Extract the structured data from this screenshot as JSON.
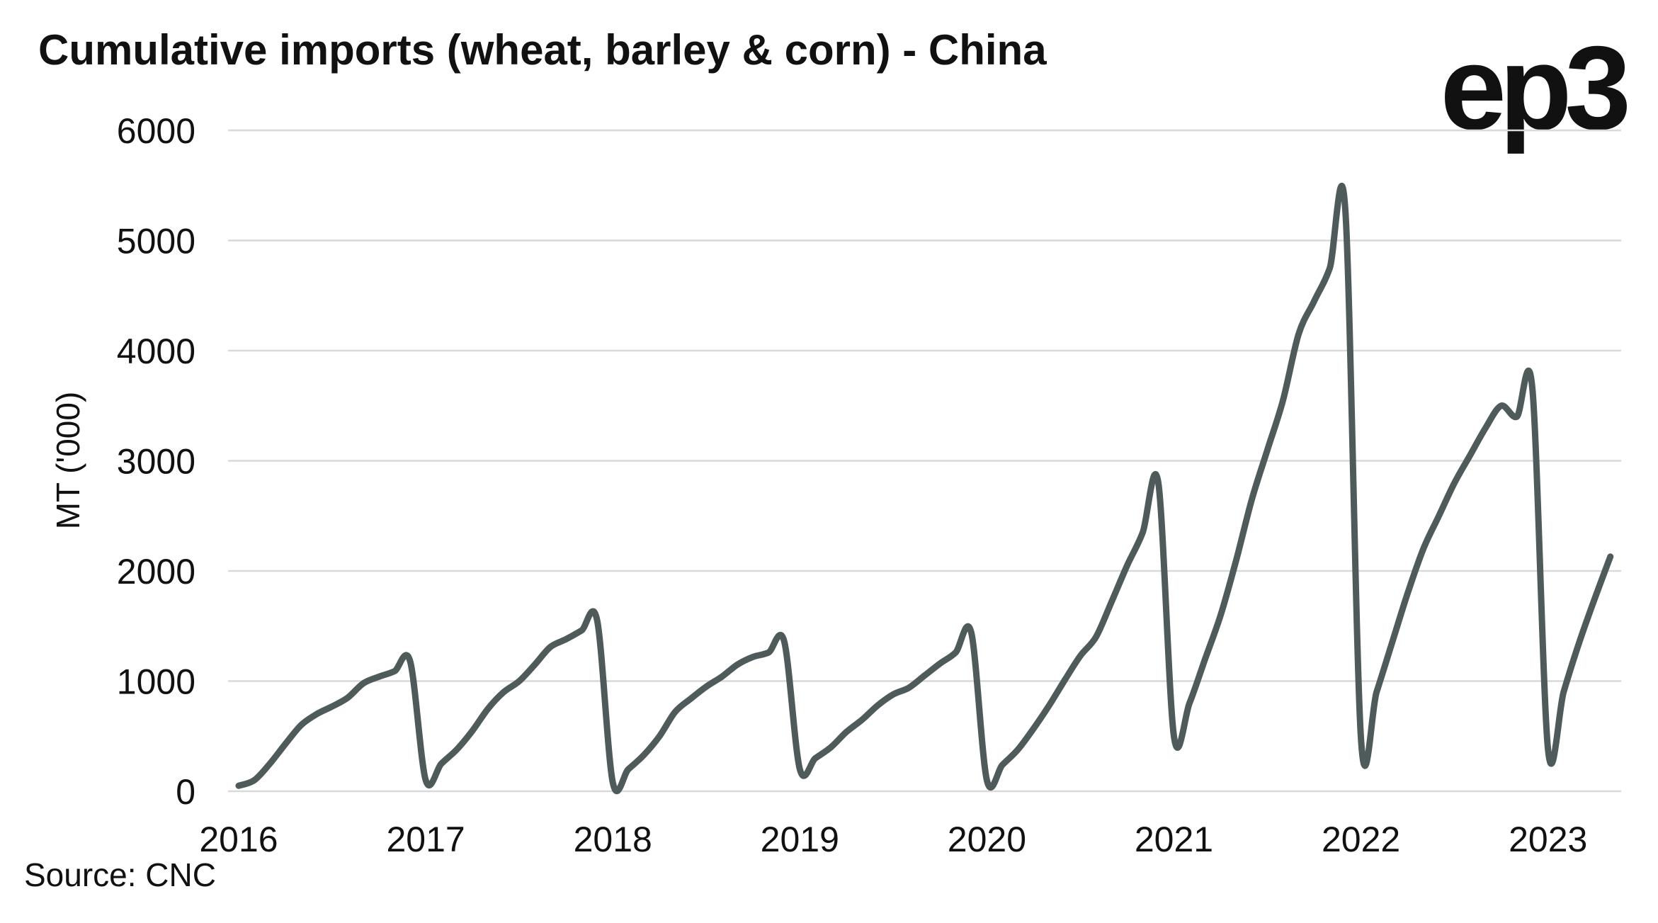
{
  "chart_data": {
    "type": "line",
    "title": "Cumulative imports (wheat, barley & corn) - China",
    "ylabel": "MT ('000)",
    "xlabel": "",
    "source": "Source: CNC",
    "logo": "ep3",
    "ylim": [
      0,
      6000
    ],
    "yticks": [
      0,
      1000,
      2000,
      3000,
      4000,
      5000,
      6000
    ],
    "xticks": [
      "2016",
      "2017",
      "2018",
      "2019",
      "2020",
      "2021",
      "2022",
      "2023"
    ],
    "grid": true,
    "line_color": "#4f5b5a",
    "start": "2016-01",
    "frequency": "monthly",
    "values": [
      50,
      100,
      250,
      430,
      600,
      700,
      770,
      850,
      980,
      1040,
      1090,
      1180,
      100,
      250,
      380,
      550,
      750,
      900,
      1000,
      1150,
      1310,
      1380,
      1460,
      1550,
      80,
      200,
      330,
      500,
      720,
      840,
      950,
      1040,
      1150,
      1220,
      1260,
      1360,
      200,
      300,
      400,
      540,
      650,
      780,
      880,
      940,
      1050,
      1160,
      1260,
      1440,
      100,
      240,
      380,
      570,
      780,
      1010,
      1230,
      1400,
      1720,
      2050,
      2350,
      2800,
      500,
      800,
      1200,
      1600,
      2100,
      2650,
      3100,
      3550,
      4150,
      4450,
      4750,
      5270,
      480,
      900,
      1350,
      1800,
      2200,
      2500,
      2800,
      3050,
      3300,
      3500,
      3400,
      3650,
      380,
      900,
      1350,
      1750,
      2130
    ]
  }
}
